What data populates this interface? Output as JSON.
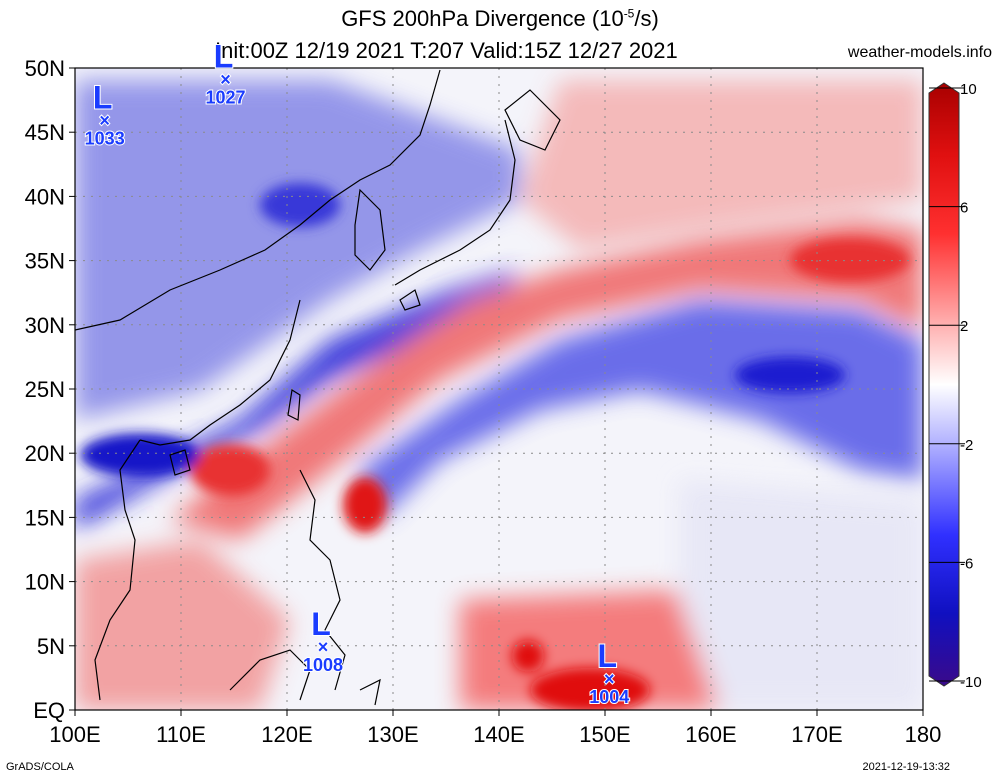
{
  "title": {
    "line1_prefix": "GFS 200hPa Divergence (10",
    "line1_exp": "-5",
    "line1_suffix": "/s)",
    "line2": "Init:00Z 12/19 2021 T:207 Valid:15Z 12/27 2021",
    "site": "weather-models.info"
  },
  "footer": {
    "left": "GrADS/COLA",
    "right": "2021-12-19-13:32"
  },
  "map": {
    "lon_labels": [
      "100E",
      "110E",
      "120E",
      "130E",
      "140E",
      "150E",
      "160E",
      "170E",
      "180"
    ],
    "lat_labels": [
      "EQ",
      "5N",
      "10N",
      "15N",
      "20N",
      "25N",
      "30N",
      "35N",
      "40N",
      "45N",
      "50N"
    ],
    "lon_range": [
      100,
      180
    ],
    "lat_range": [
      0,
      50
    ]
  },
  "colorbar": {
    "ticks": [
      "10",
      "6",
      "2",
      "-2",
      "-6",
      "-10"
    ],
    "range": [
      -10,
      10
    ],
    "colors": {
      "max": "#b80000",
      "pos": "#ff1a1a",
      "neu": "#ffffff",
      "neg": "#1a1aff",
      "min": "#3a0a8a"
    }
  },
  "pressure_centers": [
    {
      "letter": "L",
      "value": "1033",
      "lon": 102.8,
      "lat": 45.9
    },
    {
      "letter": "L",
      "value": "1027",
      "lon": 114.2,
      "lat": 49.1
    },
    {
      "letter": "L",
      "value": "1008",
      "lon": 123.4,
      "lat": 4.9
    },
    {
      "letter": "L",
      "value": "1004",
      "lon": 150.4,
      "lat": 2.4
    }
  ]
}
